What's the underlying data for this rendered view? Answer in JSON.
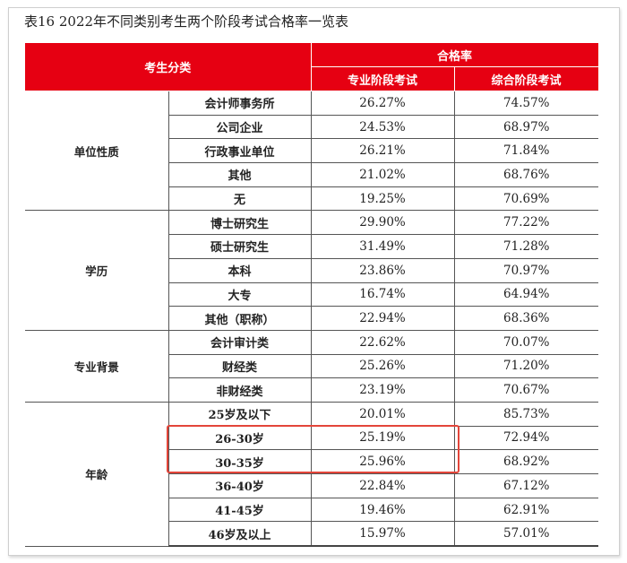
{
  "title": "表16  2022年不同类别考生两个阶段考试合格率一览表",
  "header": {
    "category": "考生分类",
    "pass_rate": "合格率",
    "professional": "专业阶段考试",
    "comprehensive": "综合阶段考试"
  },
  "highlight_color": "#e3453a",
  "header_color": "#e60012",
  "groups": [
    {
      "name": "单位性质",
      "rows": [
        {
          "label": "会计师事务所",
          "professional": "26.27%",
          "comprehensive": "74.57%"
        },
        {
          "label": "公司企业",
          "professional": "24.53%",
          "comprehensive": "68.97%"
        },
        {
          "label": "行政事业单位",
          "professional": "26.21%",
          "comprehensive": "71.84%"
        },
        {
          "label": "其他",
          "professional": "21.02%",
          "comprehensive": "68.76%"
        },
        {
          "label": "无",
          "professional": "19.25%",
          "comprehensive": "70.69%"
        }
      ]
    },
    {
      "name": "学历",
      "rows": [
        {
          "label": "博士研究生",
          "professional": "29.90%",
          "comprehensive": "77.22%"
        },
        {
          "label": "硕士研究生",
          "professional": "31.49%",
          "comprehensive": "71.28%"
        },
        {
          "label": "本科",
          "professional": "23.86%",
          "comprehensive": "70.97%"
        },
        {
          "label": "大专",
          "professional": "16.74%",
          "comprehensive": "64.94%"
        },
        {
          "label": "其他（职称）",
          "professional": "22.94%",
          "comprehensive": "68.36%"
        }
      ]
    },
    {
      "name": "专业背景",
      "rows": [
        {
          "label": "会计审计类",
          "professional": "22.62%",
          "comprehensive": "70.07%"
        },
        {
          "label": "财经类",
          "professional": "25.26%",
          "comprehensive": "71.20%"
        },
        {
          "label": "非财经类",
          "professional": "23.19%",
          "comprehensive": "70.67%"
        }
      ]
    },
    {
      "name": "年龄",
      "rows": [
        {
          "label": "25岁及以下",
          "professional": "20.01%",
          "comprehensive": "85.73%"
        },
        {
          "label": "26-30岁",
          "professional": "25.19%",
          "comprehensive": "72.94%",
          "highlighted": true
        },
        {
          "label": "30-35岁",
          "professional": "25.96%",
          "comprehensive": "68.92%",
          "highlighted": true
        },
        {
          "label": "36-40岁",
          "professional": "22.84%",
          "comprehensive": "67.12%"
        },
        {
          "label": "41-45岁",
          "professional": "19.46%",
          "comprehensive": "62.91%"
        },
        {
          "label": "46岁及以上",
          "professional": "15.97%",
          "comprehensive": "57.01%"
        }
      ]
    }
  ]
}
